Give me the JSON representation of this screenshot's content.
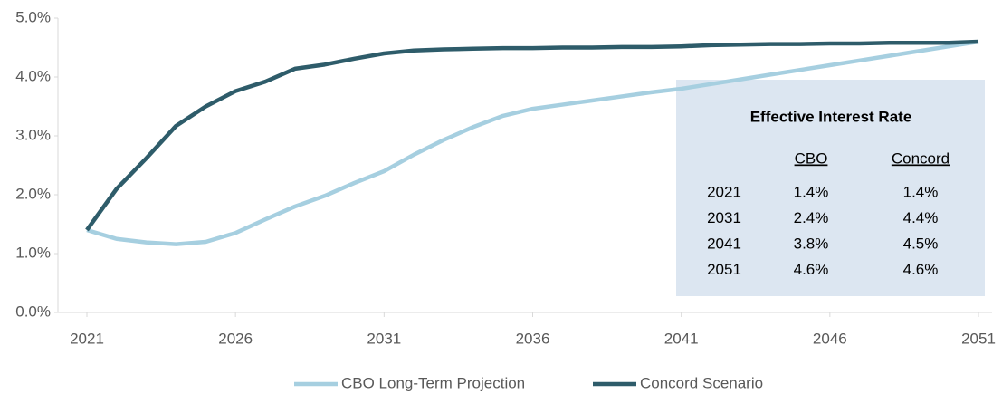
{
  "chart_data": {
    "type": "line",
    "x": [
      2021,
      2022,
      2023,
      2024,
      2025,
      2026,
      2027,
      2028,
      2029,
      2030,
      2031,
      2032,
      2033,
      2034,
      2035,
      2036,
      2037,
      2038,
      2039,
      2040,
      2041,
      2042,
      2043,
      2044,
      2045,
      2046,
      2047,
      2048,
      2049,
      2050,
      2051
    ],
    "series": [
      {
        "name": "CBO Long-Term Projection",
        "color": "#a6cfe0",
        "values": [
          1.4,
          1.25,
          1.19,
          1.16,
          1.2,
          1.35,
          1.58,
          1.8,
          1.98,
          2.2,
          2.4,
          2.68,
          2.93,
          3.15,
          3.34,
          3.46,
          3.53,
          3.6,
          3.67,
          3.74,
          3.8,
          3.88,
          3.96,
          4.04,
          4.12,
          4.2,
          4.28,
          4.36,
          4.44,
          4.52,
          4.6
        ]
      },
      {
        "name": "Concord Scenario",
        "color": "#2e5c6a",
        "values": [
          1.4,
          2.1,
          2.62,
          3.17,
          3.5,
          3.76,
          3.92,
          4.14,
          4.21,
          4.31,
          4.4,
          4.45,
          4.47,
          4.48,
          4.49,
          4.49,
          4.5,
          4.5,
          4.51,
          4.51,
          4.52,
          4.54,
          4.55,
          4.56,
          4.56,
          4.57,
          4.57,
          4.58,
          4.58,
          4.58,
          4.6
        ]
      }
    ],
    "xlim": [
      2021,
      2051
    ],
    "xticks": [
      2021,
      2026,
      2031,
      2036,
      2041,
      2046,
      2051
    ],
    "ylim": [
      0,
      5
    ],
    "yticks": [
      {
        "value": 0,
        "label": "0.0%"
      },
      {
        "value": 1,
        "label": "1.0%"
      },
      {
        "value": 2,
        "label": "2.0%"
      },
      {
        "value": 3,
        "label": "3.0%"
      },
      {
        "value": 4,
        "label": "4.0%"
      },
      {
        "value": 5,
        "label": "5.0%"
      }
    ],
    "grid": false,
    "legend": "bottom",
    "inset_table": {
      "title": "Effective Interest Rate",
      "columns": [
        "CBO",
        "Concord"
      ],
      "rows": [
        {
          "year": "2021",
          "values": [
            "1.4%",
            "1.4%"
          ]
        },
        {
          "year": "2031",
          "values": [
            "2.4%",
            "4.4%"
          ]
        },
        {
          "year": "2041",
          "values": [
            "3.8%",
            "4.5%"
          ]
        },
        {
          "year": "2051",
          "values": [
            "4.6%",
            "4.6%"
          ]
        }
      ]
    }
  }
}
